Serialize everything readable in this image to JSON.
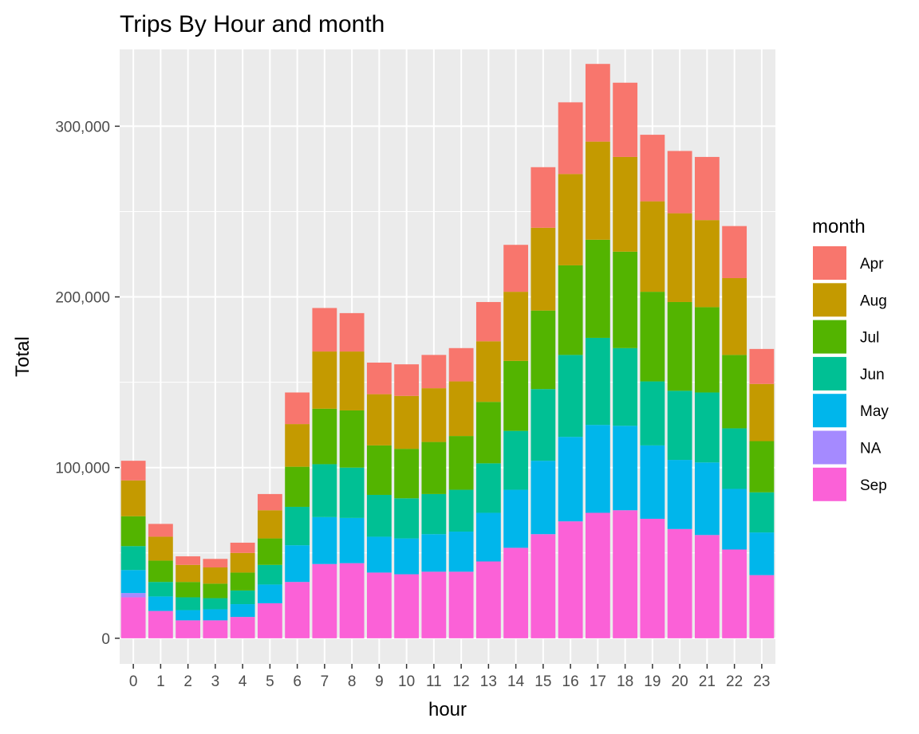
{
  "chart_data": {
    "type": "bar",
    "stacked": true,
    "title": "Trips By Hour and month",
    "xlabel": "hour",
    "ylabel": "Total",
    "ylim": [
      -15000,
      345000
    ],
    "y_ticks": [
      0,
      100000,
      200000,
      300000
    ],
    "y_tick_labels": [
      "0",
      "100,000",
      "200,000",
      "300,000"
    ],
    "grid": true,
    "legend_position": "right",
    "legend_title": "month",
    "categories": [
      "0",
      "1",
      "2",
      "3",
      "4",
      "5",
      "6",
      "7",
      "8",
      "9",
      "10",
      "11",
      "12",
      "13",
      "14",
      "15",
      "16",
      "17",
      "18",
      "19",
      "20",
      "21",
      "22",
      "23"
    ],
    "stack_order": [
      "Sep",
      "NA",
      "May",
      "Jun",
      "Jul",
      "Aug",
      "Apr"
    ],
    "series": [
      {
        "name": "Apr",
        "color": "#F8766D",
        "values": [
          11500,
          7500,
          5000,
          5000,
          6000,
          9500,
          18500,
          25500,
          22500,
          18500,
          18500,
          19500,
          19500,
          23000,
          27500,
          35500,
          42000,
          45500,
          43500,
          39000,
          36500,
          37000,
          30500,
          20500
        ]
      },
      {
        "name": "Aug",
        "color": "#C49A00",
        "values": [
          21000,
          14000,
          10000,
          9500,
          11500,
          16500,
          25000,
          33500,
          34500,
          30000,
          31000,
          31500,
          32000,
          35500,
          40500,
          48500,
          53500,
          57500,
          55500,
          53000,
          52000,
          51000,
          45000,
          33500
        ]
      },
      {
        "name": "Jul",
        "color": "#53B400",
        "values": [
          17500,
          12500,
          9000,
          8500,
          10500,
          15500,
          23500,
          32500,
          33500,
          29000,
          29000,
          30500,
          31500,
          36000,
          41000,
          46000,
          52500,
          57500,
          56500,
          52500,
          52000,
          50000,
          43000,
          30000
        ]
      },
      {
        "name": "Jun",
        "color": "#00C094",
        "values": [
          14000,
          8500,
          7500,
          6500,
          8000,
          11500,
          22500,
          31000,
          29500,
          24500,
          23500,
          23500,
          24500,
          29000,
          34500,
          42000,
          48000,
          51000,
          45500,
          37500,
          40500,
          41000,
          35500,
          23500
        ]
      },
      {
        "name": "May",
        "color": "#00B6EB",
        "values": [
          13500,
          8500,
          6000,
          6500,
          7500,
          11000,
          21500,
          27500,
          26500,
          21000,
          21000,
          22000,
          23500,
          28500,
          34000,
          43000,
          49500,
          51500,
          49500,
          43000,
          40500,
          42500,
          35500,
          25000
        ]
      },
      {
        "name": "NA",
        "color": "#A58AFF",
        "values": [
          2500,
          0,
          0,
          0,
          0,
          0,
          0,
          0,
          0,
          0,
          0,
          0,
          0,
          0,
          0,
          0,
          0,
          0,
          0,
          0,
          0,
          0,
          0,
          0
        ]
      },
      {
        "name": "Sep",
        "color": "#FB61D7",
        "values": [
          24000,
          16000,
          10500,
          10500,
          12500,
          20500,
          33000,
          43500,
          44000,
          38500,
          37500,
          39000,
          39000,
          45000,
          53000,
          61000,
          68500,
          73500,
          75000,
          70000,
          64000,
          60500,
          52000,
          37000
        ]
      }
    ]
  }
}
